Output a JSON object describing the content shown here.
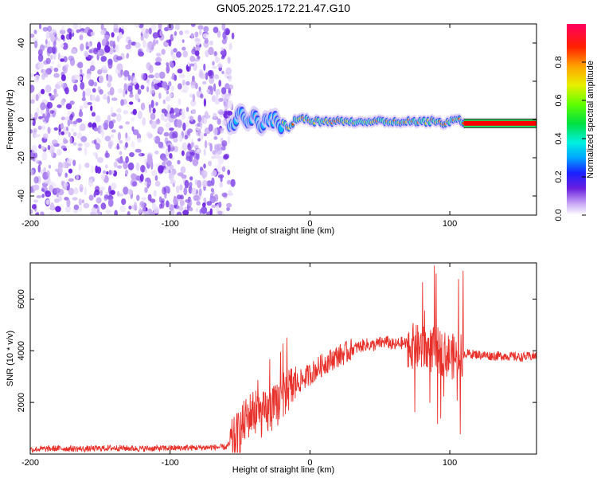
{
  "title": "GN05.2025.172.21.47.G10",
  "colors": {
    "signal_band": "#ff0000",
    "snr_line": "#e8302a",
    "noise_light": "#d9c6f7",
    "noise_dark": "#6a1fe0"
  },
  "chart_data": [
    {
      "type": "heatmap",
      "title": "GN05.2025.172.21.47.G10",
      "xlabel": "Height of straight line (km)",
      "ylabel": "Frequency (Hz)",
      "xlim": [
        -200,
        162
      ],
      "ylim": [
        -50,
        50
      ],
      "x_ticks": [
        -200,
        -100,
        0,
        100
      ],
      "y_ticks": [
        -40,
        -20,
        0,
        20,
        40
      ],
      "noise_region_x": [
        -200,
        -55
      ],
      "signal_track": {
        "x": [
          -55,
          -50,
          -45,
          -40,
          -35,
          -30,
          -25,
          -20,
          -15,
          -10,
          -5,
          0,
          10,
          20,
          30,
          40,
          50,
          60,
          70,
          80,
          90,
          95,
          100,
          105,
          110,
          130,
          162
        ],
        "y": [
          -2,
          3,
          -4,
          2,
          -3,
          -1,
          -1,
          -2,
          -4,
          0,
          1,
          -1,
          -1,
          -1,
          -1,
          -1,
          -1,
          -1,
          -1,
          -1,
          -1,
          -2,
          -1,
          1,
          -2,
          -2,
          -2
        ]
      },
      "colorbar": {
        "label": "Normalized spectral amplitude",
        "range": [
          0,
          1
        ],
        "ticks": [
          0.0,
          0.2,
          0.4,
          0.6,
          0.8
        ]
      }
    },
    {
      "type": "line",
      "xlabel": "Height of straight line (km)",
      "ylabel": "SNR (10 * v/v)",
      "xlim": [
        -200,
        162
      ],
      "ylim": [
        0,
        7400
      ],
      "x_ticks": [
        -200,
        -100,
        0,
        100
      ],
      "y_ticks": [
        2000,
        4000,
        6000
      ],
      "series": [
        {
          "x": [
            -200,
            -180,
            -160,
            -140,
            -120,
            -100,
            -80,
            -60,
            -55,
            -50,
            -45,
            -40,
            -35,
            -30,
            -25,
            -20,
            -15,
            -10,
            -5,
            0,
            5,
            10,
            15,
            20,
            25,
            30,
            35,
            40,
            45,
            50,
            55,
            60,
            65,
            70,
            75,
            80,
            85,
            90,
            95,
            100,
            105,
            110,
            120,
            130,
            140,
            150,
            162
          ],
          "y": [
            180,
            220,
            200,
            240,
            210,
            230,
            250,
            270,
            500,
            900,
            1400,
            1700,
            1500,
            1600,
            1800,
            2200,
            2500,
            2700,
            2900,
            3100,
            3300,
            3500,
            3650,
            3800,
            3900,
            4050,
            4150,
            4250,
            4200,
            4300,
            4350,
            4200,
            4300,
            4250,
            4150,
            4100,
            4000,
            4050,
            3900,
            3800,
            3750,
            3900,
            3850,
            3800,
            3800,
            3750,
            3800
          ]
        }
      ]
    }
  ]
}
